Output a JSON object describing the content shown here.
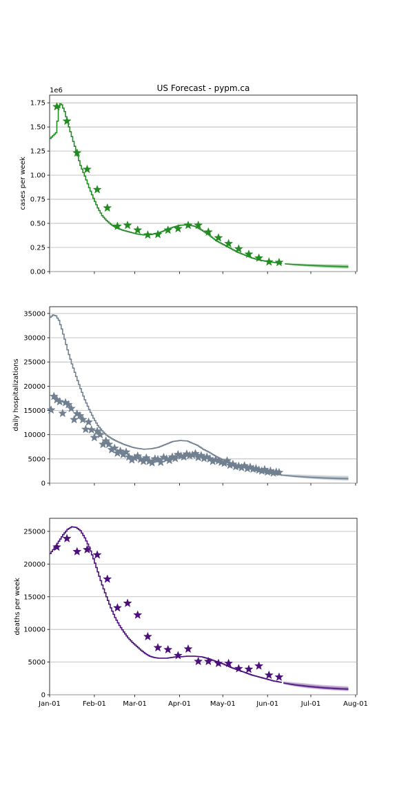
{
  "figure": {
    "title": "US Forecast   -  pypm.ca"
  },
  "x_ticks": [
    {
      "label": "Jan-01",
      "day": 0
    },
    {
      "label": "Feb-01",
      "day": 31
    },
    {
      "label": "Mar-01",
      "day": 59
    },
    {
      "label": "Apr-01",
      "day": 90
    },
    {
      "label": "May-01",
      "day": 120
    },
    {
      "label": "Jun-01",
      "day": 151
    },
    {
      "label": "Jul-01",
      "day": 181
    },
    {
      "label": "Aug-01",
      "day": 212
    }
  ],
  "chart_data": [
    {
      "type": "line",
      "ylabel": "cases per week",
      "ylim": [
        0,
        1830000
      ],
      "xlim_days": [
        0,
        213
      ],
      "offset_label": "1e6",
      "y_ticks": [
        {
          "label": "0.00",
          "value": 0
        },
        {
          "label": "0.25",
          "value": 250000
        },
        {
          "label": "0.50",
          "value": 500000
        },
        {
          "label": "0.75",
          "value": 750000
        },
        {
          "label": "1.00",
          "value": 1000000
        },
        {
          "label": "1.25",
          "value": 1250000
        },
        {
          "label": "1.50",
          "value": 1500000
        },
        {
          "label": "1.75",
          "value": 1750000
        }
      ],
      "grid": "horizontal",
      "color": "#228b22",
      "model_curve": {
        "x_days": [
          0,
          2,
          4,
          5,
          6,
          7,
          8,
          10,
          12,
          15,
          18,
          21,
          24,
          27,
          30,
          33,
          36,
          39,
          42,
          45,
          50,
          55,
          60,
          65,
          70,
          75,
          80,
          85,
          90,
          95,
          100,
          105,
          110,
          115,
          120,
          125,
          130,
          135,
          140,
          145,
          150,
          155,
          160
        ],
        "values": [
          1380000,
          1410000,
          1440000,
          1560000,
          1700000,
          1740000,
          1730000,
          1660000,
          1550000,
          1400000,
          1250000,
          1100000,
          990000,
          870000,
          760000,
          660000,
          580000,
          530000,
          490000,
          460000,
          430000,
          410000,
          390000,
          380000,
          385000,
          400000,
          430000,
          460000,
          480000,
          485000,
          470000,
          430000,
          380000,
          320000,
          280000,
          240000,
          200000,
          170000,
          140000,
          120000,
          105000,
          95000,
          85000
        ]
      },
      "forecast": {
        "x_days": [
          163,
          170,
          180,
          190,
          200,
          207
        ],
        "median": [
          80000,
          72000,
          65000,
          58000,
          53000,
          50000
        ],
        "low": [
          74000,
          60000,
          48000,
          38000,
          32000,
          28000
        ],
        "high": [
          88000,
          85000,
          80000,
          78000,
          76000,
          75000
        ]
      },
      "observed": {
        "x_days": [
          5,
          12,
          19,
          26,
          33,
          40,
          47,
          54,
          61,
          68,
          75,
          82,
          89,
          96,
          103,
          110,
          117,
          124,
          131,
          138,
          145,
          152
        ],
        "values": [
          1710000,
          1560000,
          1230000,
          1060000,
          850000,
          660000,
          470000,
          480000,
          430000,
          380000,
          385000,
          430000,
          445000,
          480000,
          480000,
          410000,
          350000,
          290000,
          235000,
          180000,
          140000,
          100000
        ]
      },
      "observed_extra": {
        "x_days": [
          159
        ],
        "values": [
          95000
        ]
      }
    },
    {
      "type": "line",
      "ylabel": "daily hospitalizations",
      "ylim": [
        0,
        36400
      ],
      "xlim_days": [
        0,
        213
      ],
      "y_ticks": [
        {
          "label": "0",
          "value": 0
        },
        {
          "label": "5000",
          "value": 5000
        },
        {
          "label": "10000",
          "value": 10000
        },
        {
          "label": "15000",
          "value": 15000
        },
        {
          "label": "20000",
          "value": 20000
        },
        {
          "label": "25000",
          "value": 25000
        },
        {
          "label": "30000",
          "value": 30000
        },
        {
          "label": "35000",
          "value": 35000
        }
      ],
      "grid": "horizontal",
      "color": "#708090",
      "model_curve": {
        "x_days": [
          0,
          2,
          4,
          6,
          8,
          10,
          12,
          15,
          18,
          21,
          24,
          27,
          30,
          33,
          36,
          39,
          42,
          45,
          48,
          51,
          54,
          57,
          60,
          65,
          70,
          75,
          80,
          85,
          90,
          95,
          98,
          102,
          106,
          110,
          115,
          120,
          125,
          130,
          135,
          140,
          145,
          150,
          155,
          160
        ],
        "values": [
          34200,
          34700,
          34500,
          33600,
          31800,
          29700,
          27500,
          24600,
          22000,
          19500,
          17200,
          15200,
          13400,
          11900,
          10800,
          9900,
          9300,
          8800,
          8400,
          8000,
          7700,
          7400,
          7200,
          7000,
          7100,
          7400,
          8000,
          8600,
          8800,
          8700,
          8300,
          7800,
          7000,
          6400,
          5500,
          4800,
          4200,
          3700,
          3200,
          2800,
          2400,
          2100,
          1900,
          1700
        ]
      },
      "forecast": {
        "x_days": [
          161,
          170,
          180,
          190,
          200,
          207
        ],
        "median": [
          1650,
          1400,
          1200,
          1050,
          950,
          900
        ],
        "low": [
          1500,
          1150,
          900,
          700,
          560,
          480
        ],
        "high": [
          1900,
          1850,
          1750,
          1650,
          1600,
          1550
        ]
      },
      "observed": {
        "x_days": [
          1,
          3,
          5,
          7,
          9,
          11,
          13,
          15,
          17,
          19,
          21,
          23,
          25,
          27,
          29,
          31,
          33,
          35,
          37,
          39,
          41,
          43,
          45,
          47,
          49,
          51,
          53,
          55,
          57,
          59,
          61,
          63,
          65,
          67,
          69,
          71,
          73,
          75,
          77,
          79,
          81,
          83,
          85,
          87,
          89,
          91,
          93,
          95,
          97,
          99,
          101,
          103,
          105,
          107,
          109,
          111,
          113,
          115,
          117,
          119,
          121,
          123,
          125,
          127,
          129,
          131,
          133,
          135,
          137,
          139,
          141,
          143,
          145,
          147,
          149,
          151,
          153,
          155,
          157,
          159
        ],
        "values": [
          15100,
          17900,
          17200,
          16800,
          14400,
          16600,
          16200,
          15400,
          13100,
          14300,
          13900,
          13100,
          11100,
          12600,
          11000,
          9400,
          10700,
          10000,
          8000,
          8700,
          8000,
          6900,
          7200,
          6200,
          6600,
          5900,
          6400,
          5400,
          4800,
          5200,
          5600,
          4900,
          4500,
          5200,
          4500,
          4200,
          5000,
          4900,
          4300,
          5300,
          5000,
          4700,
          5400,
          5100,
          5900,
          5600,
          5400,
          6000,
          5700,
          5800,
          6100,
          5300,
          5700,
          5100,
          5400,
          5000,
          4500,
          4800,
          4600,
          4300,
          4100,
          4600,
          3700,
          3900,
          3400,
          3500,
          3200,
          3600,
          3000,
          3300,
          2900,
          3000,
          2700,
          2500,
          2800,
          2300,
          2500,
          2100,
          2300,
          2200
        ]
      }
    },
    {
      "type": "line",
      "ylabel": "deaths per week",
      "ylim": [
        0,
        27000
      ],
      "xlim_days": [
        0,
        213
      ],
      "y_ticks": [
        {
          "label": "0",
          "value": 0
        },
        {
          "label": "5000",
          "value": 5000
        },
        {
          "label": "10000",
          "value": 10000
        },
        {
          "label": "15000",
          "value": 15000
        },
        {
          "label": "20000",
          "value": 20000
        },
        {
          "label": "25000",
          "value": 25000
        }
      ],
      "grid": "horizontal",
      "color": "#4b0f7a",
      "model_curve": {
        "x_days": [
          0,
          3,
          6,
          9,
          12,
          15,
          18,
          21,
          24,
          27,
          30,
          33,
          36,
          39,
          42,
          45,
          48,
          51,
          54,
          57,
          60,
          63,
          66,
          69,
          72,
          75,
          78,
          81,
          84,
          87,
          90,
          95,
          100,
          105,
          110,
          115,
          120,
          125,
          130,
          135,
          140,
          145,
          150,
          155,
          160
        ],
        "values": [
          21600,
          22500,
          23500,
          24500,
          25300,
          25700,
          25600,
          25100,
          24000,
          22600,
          20800,
          18800,
          16800,
          15000,
          13300,
          11800,
          10600,
          9600,
          8700,
          8000,
          7400,
          6800,
          6300,
          5900,
          5700,
          5600,
          5600,
          5600,
          5700,
          5800,
          5800,
          5900,
          5900,
          5800,
          5500,
          5100,
          4700,
          4200,
          3800,
          3400,
          3000,
          2700,
          2400,
          2100,
          1900
        ]
      },
      "forecast": {
        "x_days": [
          162,
          170,
          180,
          190,
          200,
          207
        ],
        "median": [
          1800,
          1500,
          1250,
          1050,
          920,
          850
        ],
        "low": [
          1600,
          1250,
          950,
          760,
          620,
          550
        ],
        "high": [
          2050,
          1900,
          1700,
          1500,
          1380,
          1300
        ]
      },
      "observed": {
        "x_days": [
          5,
          12,
          19,
          26,
          33,
          40,
          47,
          54,
          61,
          68,
          75,
          82,
          89,
          96,
          103,
          110,
          117,
          124,
          131,
          138,
          145,
          152,
          159
        ],
        "values": [
          22600,
          23900,
          21900,
          22200,
          21400,
          17700,
          13300,
          14000,
          12200,
          8900,
          7200,
          6900,
          6000,
          7000,
          5100,
          5100,
          4800,
          4800,
          4000,
          3900,
          4400,
          3000,
          2700
        ]
      }
    }
  ]
}
